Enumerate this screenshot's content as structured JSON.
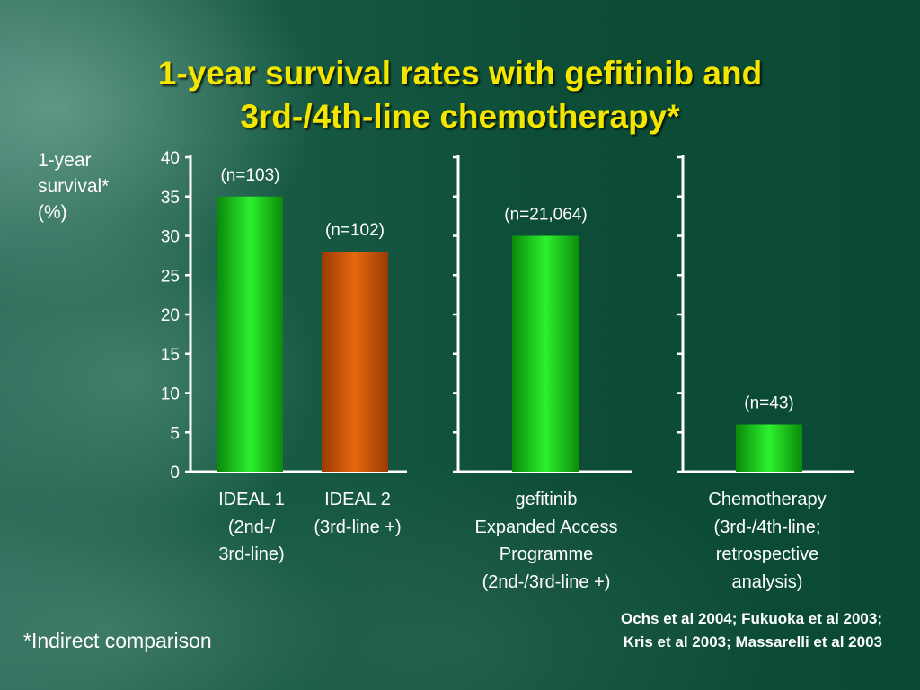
{
  "title_lines": [
    "1-year survival rates with gefitinib and",
    "3rd-/4th-line chemotherapy*"
  ],
  "ylabel_lines": [
    "1-year",
    "survival*",
    "(%)"
  ],
  "footnote": "*Indirect comparison",
  "references": [
    "Ochs et al 2004; Fukuoka et al 2003;",
    "Kris et al 2003; Massarelli et al 2003"
  ],
  "colors": {
    "title": "#f5e600",
    "green_bar": "#22cc22",
    "orange_bar": "#cc5a10",
    "axis": "#ffffff",
    "text": "#ffffff"
  },
  "chart_data": {
    "type": "bar",
    "ylim": [
      0,
      40
    ],
    "yticks": [
      0,
      5,
      10,
      15,
      20,
      25,
      30,
      35,
      40
    ],
    "grid": false,
    "panels": [
      {
        "bars": [
          {
            "label_lines": [
              "IDEAL 1",
              "(2nd-/",
              "3rd-line)"
            ],
            "value": 35,
            "n_label": "(n=103)",
            "color": "green"
          },
          {
            "label_lines": [
              "IDEAL 2",
              "(3rd-line +)"
            ],
            "value": 28,
            "n_label": "(n=102)",
            "color": "orange"
          }
        ]
      },
      {
        "bars": [
          {
            "label_lines": [
              "gefitinib",
              "Expanded Access",
              "Programme",
              "(2nd-/3rd-line +)"
            ],
            "value": 30,
            "n_label": "(n=21,064)",
            "color": "green"
          }
        ]
      },
      {
        "bars": [
          {
            "label_lines": [
              "Chemotherapy",
              "(3rd-/4th-line;",
              "retrospective",
              "analysis)"
            ],
            "value": 6,
            "n_label": "(n=43)",
            "color": "green"
          }
        ]
      }
    ]
  }
}
